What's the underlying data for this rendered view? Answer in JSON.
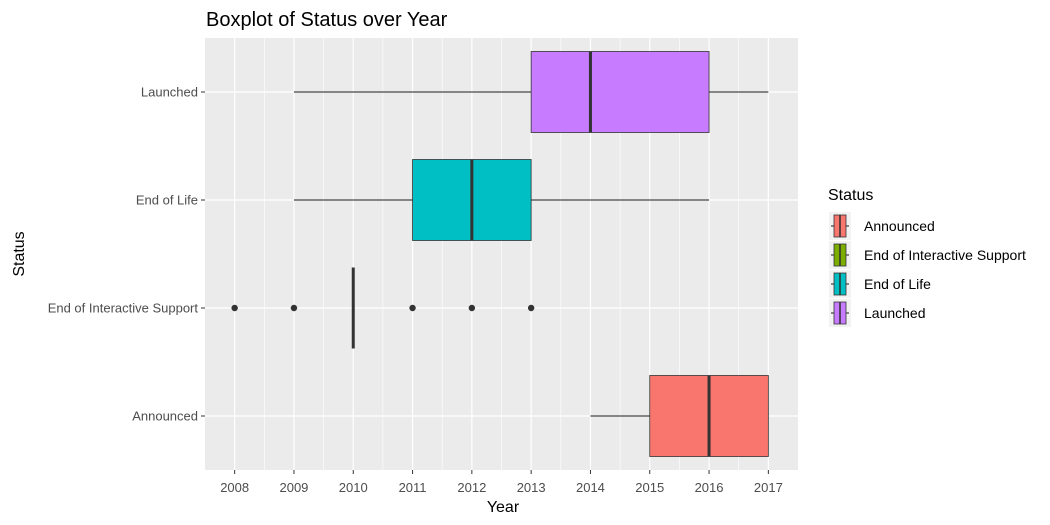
{
  "chart_data": {
    "type": "boxplot",
    "orientation": "horizontal",
    "title": "Boxplot of Status over Year",
    "xlabel": "Year",
    "ylabel": "Status",
    "xlim": [
      2007.5,
      2017.5
    ],
    "x_ticks": [
      2008,
      2009,
      2010,
      2011,
      2012,
      2013,
      2014,
      2015,
      2016,
      2017
    ],
    "categories": [
      "Announced",
      "End of Interactive Support",
      "End of Life",
      "Launched"
    ],
    "grid": true,
    "legend": {
      "title": "Status",
      "placement": "right",
      "items": [
        "Announced",
        "End of Interactive Support",
        "End of Life",
        "Launched"
      ]
    },
    "colors": {
      "Announced": "#F8766D",
      "End of Interactive Support": "#7CAE00",
      "End of Life": "#00BFC4",
      "Launched": "#C77CFF",
      "panel_background": "#EBEBEB",
      "grid": "#FFFFFF",
      "box_line": "#333333",
      "whisker": "#1a1a1a"
    },
    "boxes": [
      {
        "category": "Announced",
        "whisker_low": 2014,
        "q1": 2015,
        "median": 2016,
        "q3": 2017,
        "whisker_high": 2017,
        "outliers": []
      },
      {
        "category": "End of Interactive Support",
        "whisker_low": 2010,
        "q1": 2010,
        "median": 2010,
        "q3": 2010,
        "whisker_high": 2010,
        "outliers": [
          2008,
          2009,
          2011,
          2012,
          2013
        ]
      },
      {
        "category": "End of Life",
        "whisker_low": 2009,
        "q1": 2011,
        "median": 2012,
        "q3": 2013,
        "whisker_high": 2016,
        "outliers": []
      },
      {
        "category": "Launched",
        "whisker_low": 2009,
        "q1": 2013,
        "median": 2014,
        "q3": 2016,
        "whisker_high": 2017,
        "outliers": []
      }
    ]
  }
}
